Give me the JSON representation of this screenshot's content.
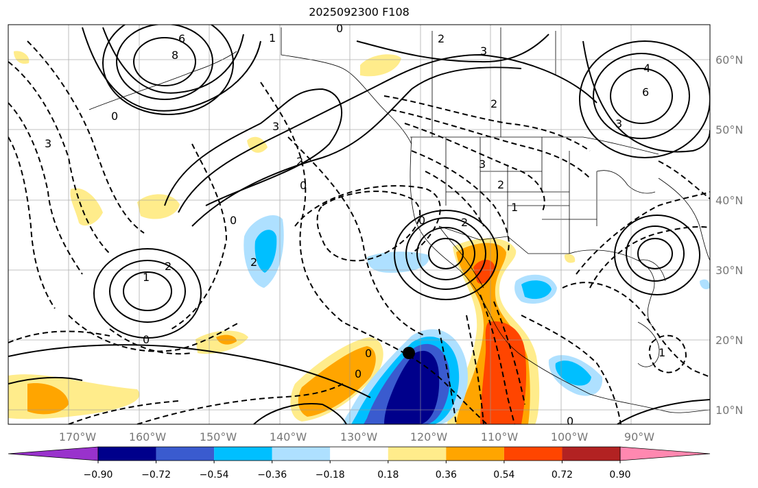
{
  "title": "2025092300 F108",
  "lat_labels": [
    "60°N",
    "50°N",
    "40°N",
    "30°N",
    "20°N",
    "10°N"
  ],
  "lon_labels": [
    "170°W",
    "160°W",
    "150°W",
    "140°W",
    "130°W",
    "120°W",
    "110°W",
    "100°W",
    "90°W"
  ],
  "colorbar": {
    "ticks": [
      "−0.90",
      "−0.72",
      "−0.54",
      "−0.36",
      "−0.18",
      "0.18",
      "0.36",
      "0.54",
      "0.72",
      "0.90"
    ],
    "colors": [
      "#9932cc",
      "#00008b",
      "#3a5bcf",
      "#00bfff",
      "#aee0ff",
      "#ffffff",
      "#ffec8b",
      "#ffa500",
      "#ff4500",
      "#b22222",
      "#ff88b0"
    ]
  },
  "contour_labels": [
    "6",
    "8",
    "3",
    "0",
    "2",
    "4",
    "6",
    "3",
    "2",
    "1",
    "0",
    "0",
    "2",
    "2",
    "3",
    "0",
    "1",
    "3",
    "0",
    "2",
    "3",
    "2",
    "1",
    "0",
    "2",
    "0",
    "0",
    "1",
    "0"
  ],
  "marker": "storm-position-dot"
}
